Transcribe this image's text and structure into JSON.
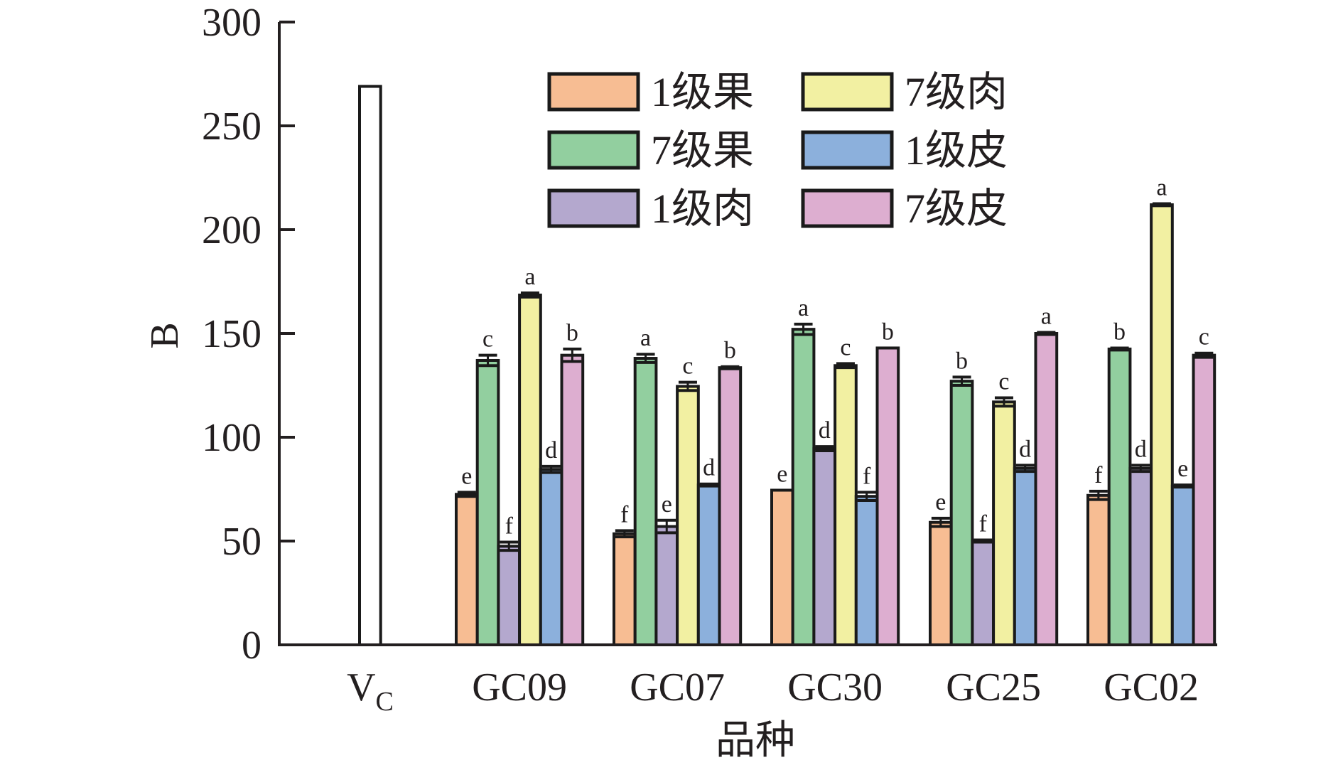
{
  "chart_data": {
    "type": "bar",
    "title": "",
    "xlabel": "品种",
    "ylabel": "B",
    "ylim": [
      0,
      300
    ],
    "yticks": [
      0,
      50,
      100,
      150,
      200,
      250,
      300
    ],
    "grid": false,
    "legend_position": "top-right",
    "control": {
      "label_main": "V",
      "label_sub": "C",
      "value": 269,
      "color": "#ffffff"
    },
    "categories": [
      "GC09",
      "GC07",
      "GC30",
      "GC25",
      "GC02"
    ],
    "series": [
      {
        "name": "1级果",
        "color": "#f7bd93",
        "values": [
          72.5,
          53.5,
          74.5,
          59,
          72
        ],
        "errors": [
          1,
          1.5,
          0,
          2,
          2
        ],
        "letters": [
          "e",
          "f",
          "e",
          "e",
          "f"
        ]
      },
      {
        "name": "7级果",
        "color": "#92cf9f",
        "values": [
          137,
          138,
          152,
          127,
          142.5
        ],
        "errors": [
          2.5,
          2,
          2.5,
          2,
          0.5
        ],
        "letters": [
          "c",
          "a",
          "a",
          "b",
          "b"
        ]
      },
      {
        "name": "1级肉",
        "color": "#b4a8ce",
        "values": [
          47.5,
          57,
          94.5,
          50,
          85
        ],
        "errors": [
          2,
          3,
          1,
          0.5,
          1.5
        ],
        "letters": [
          "f",
          "e",
          "d",
          "f",
          "d"
        ]
      },
      {
        "name": "7级肉",
        "color": "#f2f0a2",
        "values": [
          168.5,
          124.5,
          134.5,
          117,
          212
        ],
        "errors": [
          1,
          2,
          1,
          2,
          0.5
        ],
        "letters": [
          "a",
          "c",
          "c",
          "c",
          "a"
        ]
      },
      {
        "name": "1级皮",
        "color": "#8cb0dc",
        "values": [
          84.5,
          77,
          71.5,
          85,
          76.5
        ],
        "errors": [
          1.5,
          0.5,
          2,
          1.5,
          0.5
        ],
        "letters": [
          "d",
          "d",
          "f",
          "d",
          "e"
        ]
      },
      {
        "name": "7级皮",
        "color": "#ddaed0",
        "values": [
          139.5,
          133.5,
          143,
          150,
          139.5
        ],
        "errors": [
          3,
          0.5,
          0,
          0.5,
          1
        ],
        "letters": [
          "b",
          "b",
          "b",
          "a",
          "c"
        ]
      }
    ],
    "legend_order": [
      0,
      3,
      1,
      4,
      2,
      5
    ]
  }
}
